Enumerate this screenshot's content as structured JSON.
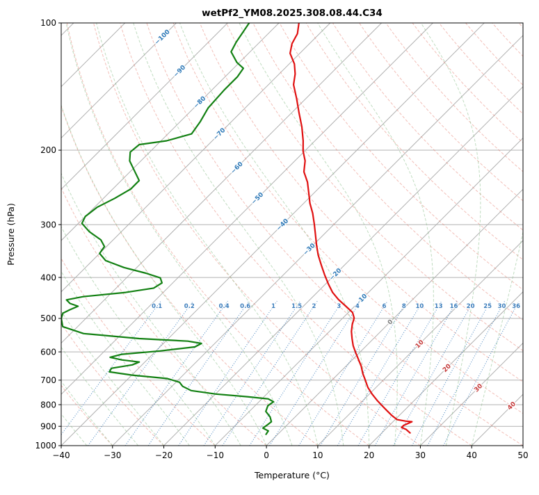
{
  "title": "wetPf2_YM08.2025.308.08.44.C34",
  "axes": {
    "x_label": "Temperature (°C)",
    "y_label": "Pressure (hPa)",
    "x_range": [
      -40,
      50
    ],
    "p_range": [
      100,
      1000
    ],
    "x_ticks": [
      -40,
      -30,
      -20,
      -10,
      0,
      10,
      20,
      30,
      40,
      50
    ],
    "x_tick_labels": [
      "−40",
      "−30",
      "−20",
      "−10",
      "0",
      "10",
      "20",
      "30",
      "40",
      "50"
    ],
    "p_ticks": [
      100,
      200,
      300,
      400,
      500,
      600,
      700,
      800,
      900,
      1000
    ],
    "p_tick_labels": [
      "100",
      "200",
      "300",
      "400",
      "500",
      "600",
      "700",
      "800",
      "900",
      "1000"
    ]
  },
  "chart_data": {
    "type": "line",
    "subtype": "skew-t-log-p-sounding",
    "title": "wetPf2_YM08.2025.308.08.44.C34",
    "xlabel": "Temperature (°C)",
    "ylabel": "Pressure (hPa)",
    "x_range_c": [
      -40,
      50
    ],
    "pressure_range_hpa": [
      100,
      1000
    ],
    "skew_c_per_ln_p": 35.8,
    "grid": true,
    "legend": "none",
    "isotherms_c": {
      "min": -120,
      "max": 50,
      "step": 10
    },
    "isotherm_labels": [
      {
        "label": "−100",
        "t": -100,
        "p": 108
      },
      {
        "label": "−90",
        "t": -90,
        "p": 130
      },
      {
        "label": "−80",
        "t": -80,
        "p": 154
      },
      {
        "label": "−70",
        "t": -70,
        "p": 183
      },
      {
        "label": "−60",
        "t": -60,
        "p": 220
      },
      {
        "label": "−50",
        "t": -50,
        "p": 260
      },
      {
        "label": "−40",
        "t": -40,
        "p": 300
      },
      {
        "label": "−30",
        "t": -30,
        "p": 343
      },
      {
        "label": "−20",
        "t": -20,
        "p": 393
      },
      {
        "label": "−10",
        "t": -10,
        "p": 452
      },
      {
        "label": "0",
        "t": 0,
        "p": 510
      },
      {
        "label": "10",
        "t": 10,
        "p": 575
      },
      {
        "label": "20",
        "t": 20,
        "p": 655
      },
      {
        "label": "30",
        "t": 30,
        "p": 730
      },
      {
        "label": "40",
        "t": 40,
        "p": 805
      }
    ],
    "dry_adiabats_c": {
      "min": -40,
      "max": 200,
      "step": 10
    },
    "moist_adiabats_c": {
      "min": -40,
      "max": 40,
      "step": 5
    },
    "mixing_ratio_g_kg": {
      "values": [
        0.1,
        0.2,
        0.4,
        0.6,
        1,
        1.5,
        2,
        3,
        4,
        6,
        8,
        10,
        13,
        16,
        20,
        25,
        30,
        36
      ],
      "labels": [
        "0.1",
        "0.2",
        "0.4",
        "0.6",
        "1",
        "1.5",
        "2",
        "3",
        "4",
        "6",
        "8",
        "10",
        "13",
        "16",
        "20",
        "25",
        "30",
        "36"
      ],
      "label_p": 468,
      "top_p": 455,
      "bottom_p": 1000
    },
    "series": [
      {
        "name": "temperature",
        "units": [
          "hPa",
          "°C"
        ],
        "points": [
          [
            100,
            -76.1
          ],
          [
            106,
            -74.3
          ],
          [
            112,
            -73.4
          ],
          [
            118,
            -71.9
          ],
          [
            125,
            -69
          ],
          [
            132,
            -66.9
          ],
          [
            140,
            -65.1
          ],
          [
            151,
            -61.8
          ],
          [
            163,
            -58.6
          ],
          [
            176,
            -55.3
          ],
          [
            190,
            -52.3
          ],
          [
            201,
            -50.3
          ],
          [
            212,
            -48
          ],
          [
            225,
            -46.1
          ],
          [
            238,
            -43.4
          ],
          [
            252,
            -41.1
          ],
          [
            267,
            -38.8
          ],
          [
            282,
            -36.3
          ],
          [
            299,
            -33.9
          ],
          [
            316,
            -31.7
          ],
          [
            335,
            -29.4
          ],
          [
            354,
            -27.1
          ],
          [
            375,
            -24.4
          ],
          [
            395,
            -21.9
          ],
          [
            415,
            -19.4
          ],
          [
            434,
            -17
          ],
          [
            451,
            -14.5
          ],
          [
            468,
            -11.7
          ],
          [
            484,
            -9.2
          ],
          [
            499,
            -7.8
          ],
          [
            517,
            -6.9
          ],
          [
            537,
            -5.7
          ],
          [
            558,
            -4.2
          ],
          [
            580,
            -2.6
          ],
          [
            602,
            -0.8
          ],
          [
            625,
            1.1
          ],
          [
            649,
            3
          ],
          [
            675,
            4.7
          ],
          [
            700,
            6.5
          ],
          [
            728,
            8.4
          ],
          [
            756,
            10.6
          ],
          [
            781,
            12.7
          ],
          [
            805,
            14.8
          ],
          [
            827,
            16.7
          ],
          [
            849,
            18.6
          ],
          [
            868,
            20.4
          ],
          [
            875,
            22.3
          ],
          [
            878,
            23.7
          ],
          [
            895,
            22.8
          ],
          [
            906,
            22.8
          ],
          [
            916,
            24.1
          ],
          [
            933,
            25.5
          ]
        ]
      },
      {
        "name": "dewpoint",
        "units": [
          "hPa",
          "°C"
        ],
        "points": [
          [
            100,
            -85.8
          ],
          [
            111,
            -84.6
          ],
          [
            117,
            -83.7
          ],
          [
            124,
            -80.5
          ],
          [
            128,
            -78.1
          ],
          [
            134,
            -77.6
          ],
          [
            144,
            -77.6
          ],
          [
            159,
            -77.2
          ],
          [
            171,
            -76.1
          ],
          [
            183,
            -75.4
          ],
          [
            190,
            -78.9
          ],
          [
            194,
            -83.5
          ],
          [
            202,
            -83.8
          ],
          [
            212,
            -82.2
          ],
          [
            226,
            -78.8
          ],
          [
            236,
            -76.5
          ],
          [
            247,
            -76.5
          ],
          [
            260,
            -77.8
          ],
          [
            273,
            -79.5
          ],
          [
            287,
            -80
          ],
          [
            298,
            -79.3
          ],
          [
            312,
            -76.2
          ],
          [
            326,
            -72.4
          ],
          [
            338,
            -70.4
          ],
          [
            351,
            -70
          ],
          [
            365,
            -67.4
          ],
          [
            379,
            -62.5
          ],
          [
            391,
            -57.1
          ],
          [
            401,
            -53.4
          ],
          [
            412,
            -52.1
          ],
          [
            424,
            -52.7
          ],
          [
            434,
            -57.3
          ],
          [
            444,
            -64.7
          ],
          [
            452,
            -67.4
          ],
          [
            461,
            -66
          ],
          [
            468,
            -63.9
          ],
          [
            477,
            -64.8
          ],
          [
            486,
            -65.5
          ],
          [
            500,
            -64.8
          ],
          [
            523,
            -62.9
          ],
          [
            543,
            -57.5
          ],
          [
            558,
            -45.7
          ],
          [
            566,
            -35.7
          ],
          [
            573,
            -32.6
          ],
          [
            584,
            -33.2
          ],
          [
            597,
            -39.2
          ],
          [
            608,
            -46
          ],
          [
            618,
            -47.7
          ],
          [
            627,
            -44.9
          ],
          [
            634,
            -41.1
          ],
          [
            644,
            -41.9
          ],
          [
            656,
            -45.3
          ],
          [
            669,
            -45
          ],
          [
            681,
            -39.9
          ],
          [
            694,
            -32.4
          ],
          [
            708,
            -29.3
          ],
          [
            724,
            -27.9
          ],
          [
            741,
            -25.4
          ],
          [
            755,
            -19.9
          ],
          [
            766,
            -13.3
          ],
          [
            775,
            -8.8
          ],
          [
            787,
            -7.2
          ],
          [
            805,
            -7.5
          ],
          [
            830,
            -6.8
          ],
          [
            855,
            -4.9
          ],
          [
            878,
            -3.7
          ],
          [
            895,
            -3.9
          ],
          [
            909,
            -4.1
          ],
          [
            923,
            -2.5
          ],
          [
            940,
            -2.3
          ]
        ]
      }
    ],
    "colors": {
      "temperature": "#e01010",
      "dewpoint": "#128012",
      "isotherm": "#b0b0b0",
      "isobar": "#b0b0b0",
      "dry_adiabat": "#e8887c",
      "moist_adiabat": "#8cc08c",
      "mixing_ratio": "#3d7ebc",
      "label_negative": "#2f7ab8",
      "label_zero": "#808080",
      "label_positive": "#c53b3b",
      "axis": "#000000"
    }
  }
}
